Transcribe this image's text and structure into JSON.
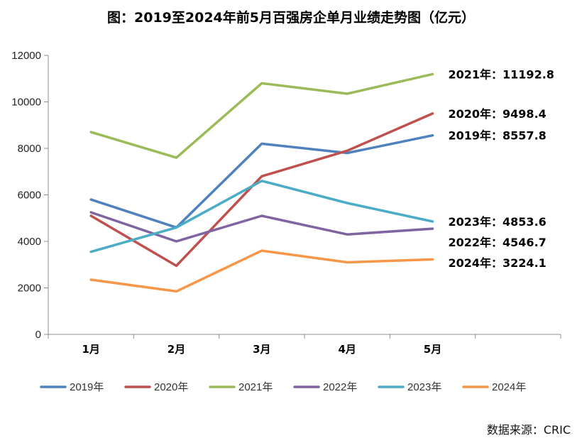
{
  "title": "图：2019至2024年前5月百强房企单月业绩走势图（亿元）",
  "source": "数据来源：CRIC",
  "chart_data": {
    "type": "line",
    "categories": [
      "1月",
      "2月",
      "3月",
      "4月",
      "5月"
    ],
    "ylim": [
      0,
      12000
    ],
    "yticks": [
      0,
      2000,
      4000,
      6000,
      8000,
      10000,
      12000
    ],
    "legend_position": "bottom",
    "grid": false,
    "series": [
      {
        "name": "2019年",
        "color": "#4E81BD",
        "values": [
          5800,
          4600,
          8200,
          7800,
          8557.8
        ],
        "end_label": "2019年：8557.8"
      },
      {
        "name": "2020年",
        "color": "#C0504D",
        "values": [
          5100,
          2950,
          6800,
          7900,
          9498.4
        ],
        "end_label": "2020年：9498.4"
      },
      {
        "name": "2021年",
        "color": "#9BBB59",
        "values": [
          8700,
          7600,
          10800,
          10350,
          11192.8
        ],
        "end_label": "2021年：11192.8"
      },
      {
        "name": "2022年",
        "color": "#8064A2",
        "values": [
          5250,
          4000,
          5100,
          4300,
          4546.7
        ],
        "end_label": "2022年：4546.7"
      },
      {
        "name": "2023年",
        "color": "#4BACC6",
        "values": [
          3550,
          4600,
          6600,
          5650,
          4853.6
        ],
        "end_label": "2023年：4853.6"
      },
      {
        "name": "2024年",
        "color": "#F79646",
        "values": [
          2350,
          1850,
          3600,
          3100,
          3224.1
        ],
        "end_label": "2024年：3224.1"
      }
    ]
  }
}
